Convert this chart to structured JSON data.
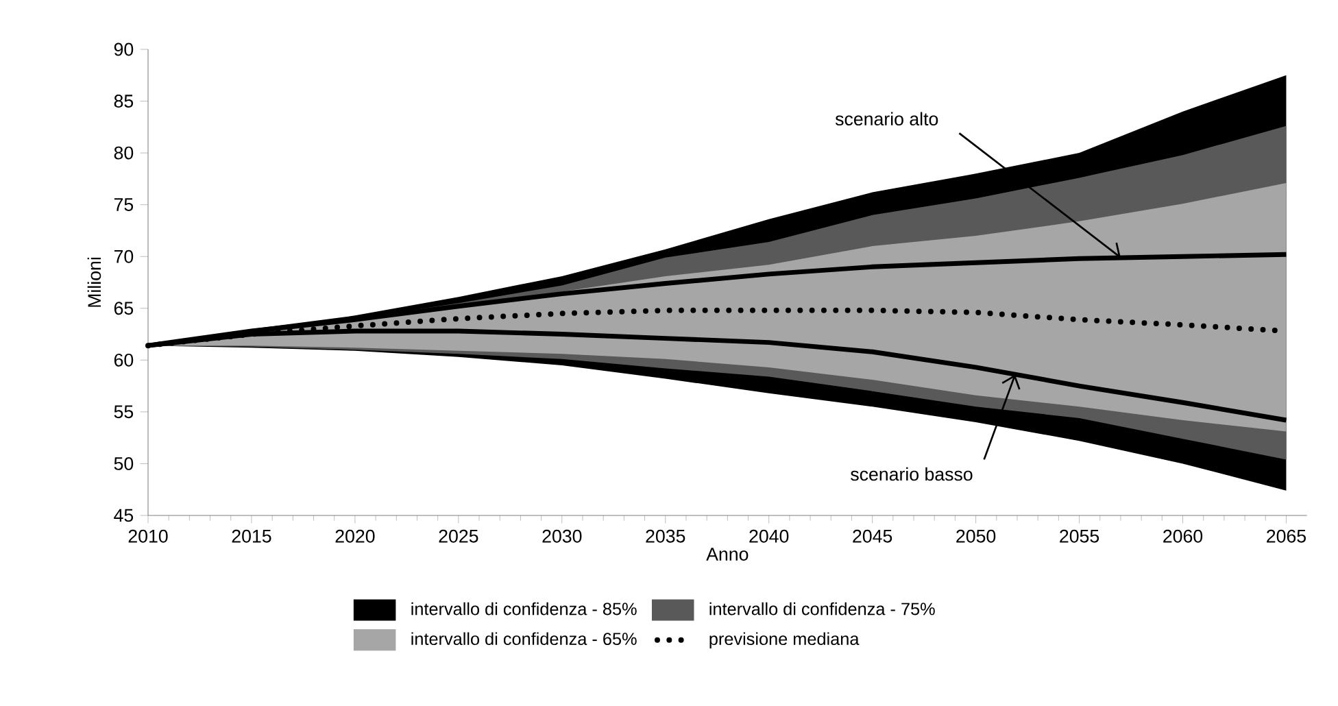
{
  "chart_data": {
    "type": "area",
    "xlabel": "Anno",
    "ylabel": "Milioni",
    "x": [
      2010,
      2015,
      2020,
      2025,
      2030,
      2035,
      2040,
      2045,
      2050,
      2055,
      2060,
      2065
    ],
    "series": [
      {
        "name": "intervallo di confidenza - 85%",
        "color": "#000000",
        "values": [
          null,
          null,
          null,
          null,
          null,
          null,
          null,
          null,
          null,
          null,
          null,
          null
        ],
        "lower": [
          61.4,
          61.2,
          60.9,
          60.3,
          59.5,
          58.2,
          56.8,
          55.5,
          54.0,
          52.2,
          50.0,
          47.4
        ],
        "upper": [
          61.4,
          63.0,
          64.3,
          66.1,
          68.1,
          70.7,
          73.6,
          76.2,
          78.0,
          80.0,
          84.0,
          87.5
        ]
      },
      {
        "name": "intervallo di confidenza - 75%",
        "color": "#595959",
        "values": [
          null,
          null,
          null,
          null,
          null,
          null,
          null,
          null,
          null,
          null,
          null,
          null
        ],
        "lower": [
          61.4,
          61.3,
          61.0,
          60.6,
          60.1,
          59.2,
          58.4,
          57.0,
          55.5,
          54.4,
          52.4,
          50.4
        ],
        "upper": [
          61.4,
          62.8,
          64.0,
          65.5,
          67.2,
          69.9,
          71.4,
          74.0,
          75.6,
          77.6,
          79.8,
          82.6
        ]
      },
      {
        "name": "intervallo di confidenza - 65%",
        "color": "#a6a6a6",
        "values": [
          null,
          null,
          null,
          null,
          null,
          null,
          null,
          null,
          null,
          null,
          null,
          null
        ],
        "lower": [
          61.4,
          61.4,
          61.2,
          60.9,
          60.6,
          60.1,
          59.3,
          58.1,
          56.6,
          55.5,
          54.2,
          53.1
        ],
        "upper": [
          61.4,
          62.7,
          63.8,
          65.0,
          66.6,
          68.1,
          69.2,
          71.0,
          72.0,
          73.4,
          75.1,
          77.1
        ]
      },
      {
        "name": "previsione mediana",
        "type": "line",
        "line_style": "dotted",
        "color": "#000000",
        "values": [
          61.4,
          62.5,
          63.3,
          64.0,
          64.5,
          64.8,
          64.8,
          64.8,
          64.6,
          63.9,
          63.4,
          62.8
        ]
      },
      {
        "type": "line",
        "line_style": "solid",
        "color": "#000000",
        "values": [
          61.4,
          62.8,
          63.9,
          65.2,
          66.4,
          67.4,
          68.3,
          69.0,
          69.4,
          69.8,
          70.0,
          70.2
        ]
      },
      {
        "type": "line",
        "line_style": "solid",
        "color": "#000000",
        "values": [
          61.4,
          62.5,
          62.8,
          62.8,
          62.5,
          62.1,
          61.7,
          60.8,
          59.3,
          57.5,
          55.9,
          54.2
        ]
      }
    ],
    "annotations": [
      {
        "text": "scenario alto",
        "x": 2057,
        "y": 69.9
      },
      {
        "text": "scenario basso",
        "x": 2051.9,
        "y": 58.6
      }
    ],
    "xlim": [
      2010,
      2066
    ],
    "ylim": [
      45,
      90
    ],
    "xticks": [
      2010,
      2015,
      2020,
      2025,
      2030,
      2035,
      2040,
      2045,
      2050,
      2055,
      2060,
      2065
    ],
    "yticks": [
      45,
      50,
      55,
      60,
      65,
      70,
      75,
      80,
      85,
      90
    ],
    "grid": false,
    "legend": "bottom",
    "marker": "none"
  }
}
